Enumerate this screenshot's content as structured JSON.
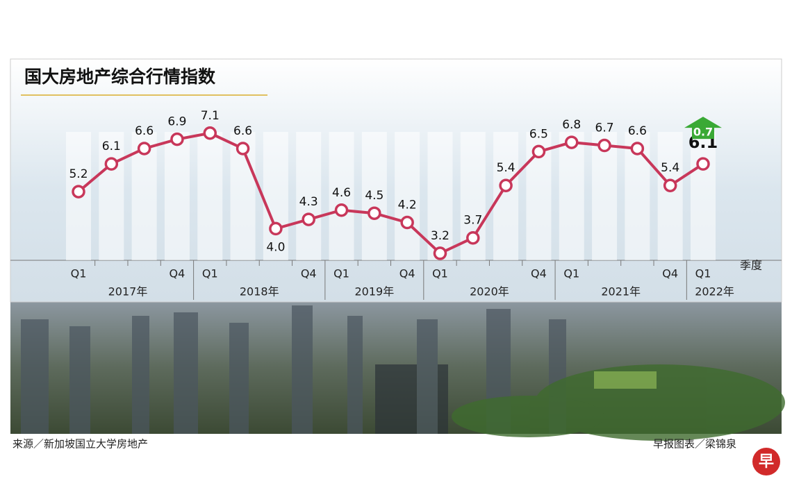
{
  "chart_data": {
    "type": "line",
    "title": "国大房地产综合行情指数",
    "categories": [
      "Q1",
      null,
      null,
      "Q4",
      "Q1",
      null,
      null,
      "Q4",
      "Q1",
      null,
      "Q4",
      "Q1",
      null,
      null,
      "Q4",
      "Q1",
      null,
      null,
      "Q4",
      "Q1"
    ],
    "years": [
      "2017年",
      "2018年",
      "2019年",
      "2020年",
      "2021年",
      "2022年"
    ],
    "x_axis_label": "季度",
    "series": [
      {
        "name": "国大房地产综合行情指数",
        "color": "#c8375a",
        "values": [
          5.2,
          6.1,
          6.6,
          6.9,
          7.1,
          6.6,
          4.0,
          4.3,
          4.6,
          4.5,
          4.2,
          3.2,
          3.7,
          5.4,
          6.5,
          6.8,
          6.7,
          6.6,
          5.4,
          6.1
        ],
        "value_labels": [
          "5.2",
          "6.1",
          "6.6",
          "6.9",
          "7.1",
          "6.6",
          "4.0",
          "4.3",
          "4.6",
          "4.5",
          "4.2",
          "3.2",
          "3.7",
          "5.4",
          "6.5",
          "6.8",
          "6.7",
          "6.6",
          "5.4",
          "6.1"
        ]
      }
    ],
    "change": 0.7,
    "change_color": "#3aa935",
    "ylim": [
      2.5,
      7.5
    ],
    "source": "来源／新加坡国立大学房地产",
    "credit": "早报图表／梁锦泉",
    "logo": "早"
  }
}
